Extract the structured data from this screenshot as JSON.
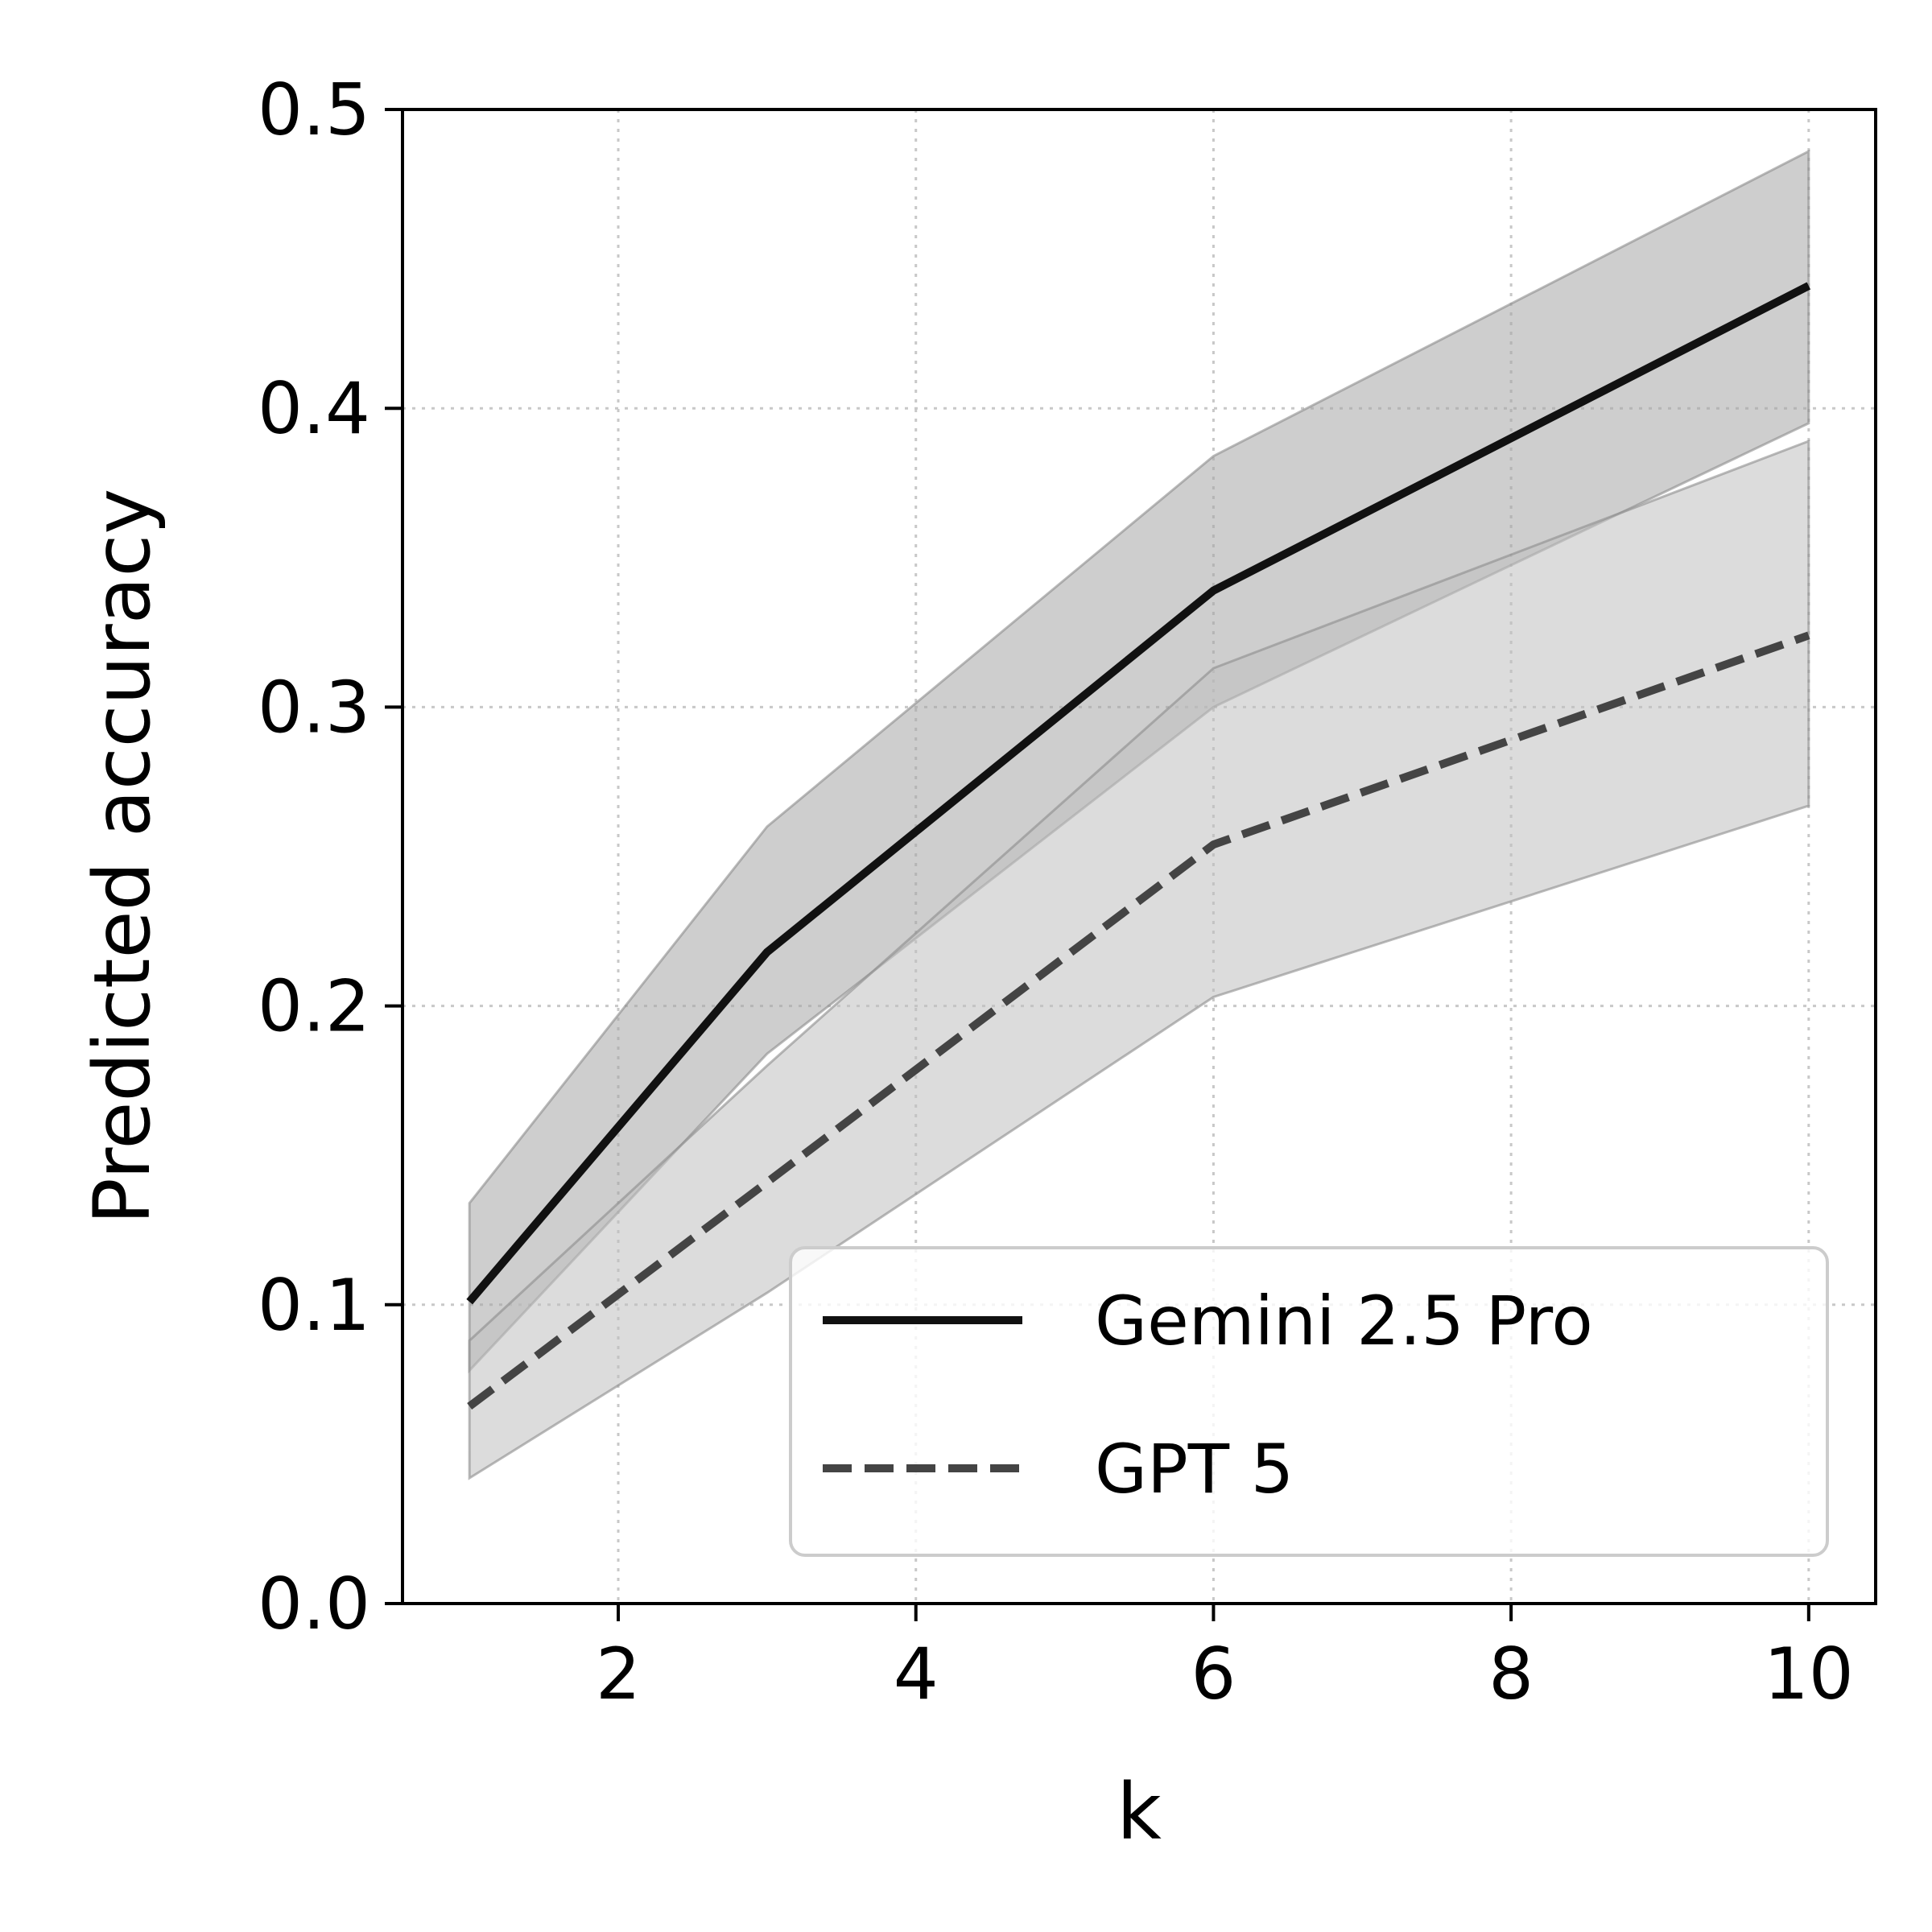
{
  "chart_data": {
    "type": "line",
    "title": "",
    "xlabel": "k",
    "ylabel": "Predicted accuracy",
    "xlim": [
      0.55,
      10.45
    ],
    "ylim": [
      0.0,
      0.5
    ],
    "xticks": [
      2,
      4,
      6,
      8,
      10
    ],
    "xtick_labels": [
      "2",
      "4",
      "6",
      "8",
      "10"
    ],
    "yticks": [
      0.0,
      0.1,
      0.2,
      0.3,
      0.4,
      0.5
    ],
    "ytick_labels": [
      "0.0",
      "0.1",
      "0.2",
      "0.3",
      "0.4",
      "0.5"
    ],
    "grid": true,
    "legend_position": "lower-right",
    "series": [
      {
        "name": "Gemini 2.5 Pro",
        "style": "solid",
        "color": "#111111",
        "band_color": "#a6a6a6",
        "x": [
          1,
          3,
          6,
          10
        ],
        "y": [
          0.101,
          0.218,
          0.339,
          0.441
        ],
        "lower": [
          0.078,
          0.184,
          0.3,
          0.395
        ],
        "upper": [
          0.134,
          0.26,
          0.384,
          0.486
        ]
      },
      {
        "name": "GPT 5",
        "style": "dashed",
        "color": "#444444",
        "band_color": "#c0c0c0",
        "x": [
          1,
          3,
          6,
          10
        ],
        "y": [
          0.066,
          0.141,
          0.254,
          0.324
        ],
        "lower": [
          0.042,
          0.104,
          0.203,
          0.267
        ],
        "upper": [
          0.088,
          0.18,
          0.313,
          0.389
        ]
      }
    ]
  }
}
